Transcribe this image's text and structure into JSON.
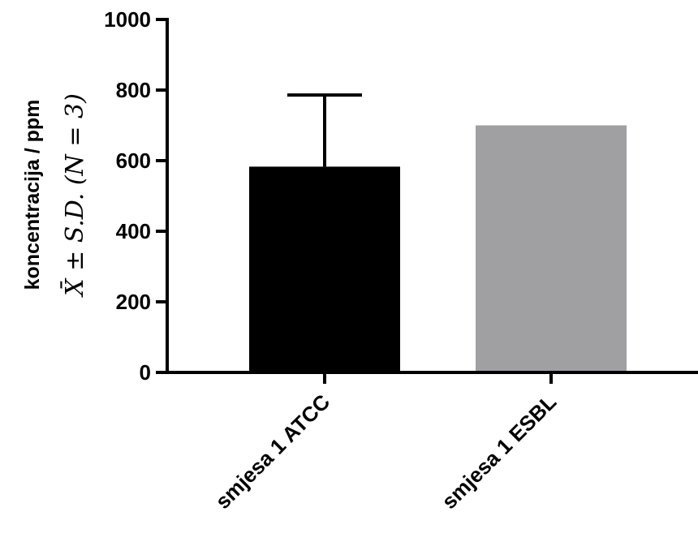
{
  "chart_data": {
    "type": "bar",
    "title": "",
    "categories": [
      "smjesa 1 ATCC",
      "smjesa 1 ESBL"
    ],
    "values": [
      583,
      700
    ],
    "error": [
      203,
      0
    ],
    "colors": [
      "#000000",
      "#a0a0a3"
    ],
    "ylabel": "koncentracija / ppm",
    "ylabel_sub": "X̄ ± S.D. (N = 3)",
    "ylim": [
      0,
      1000
    ],
    "yticks": [
      0,
      200,
      400,
      600,
      800,
      1000
    ],
    "grid": false
  }
}
